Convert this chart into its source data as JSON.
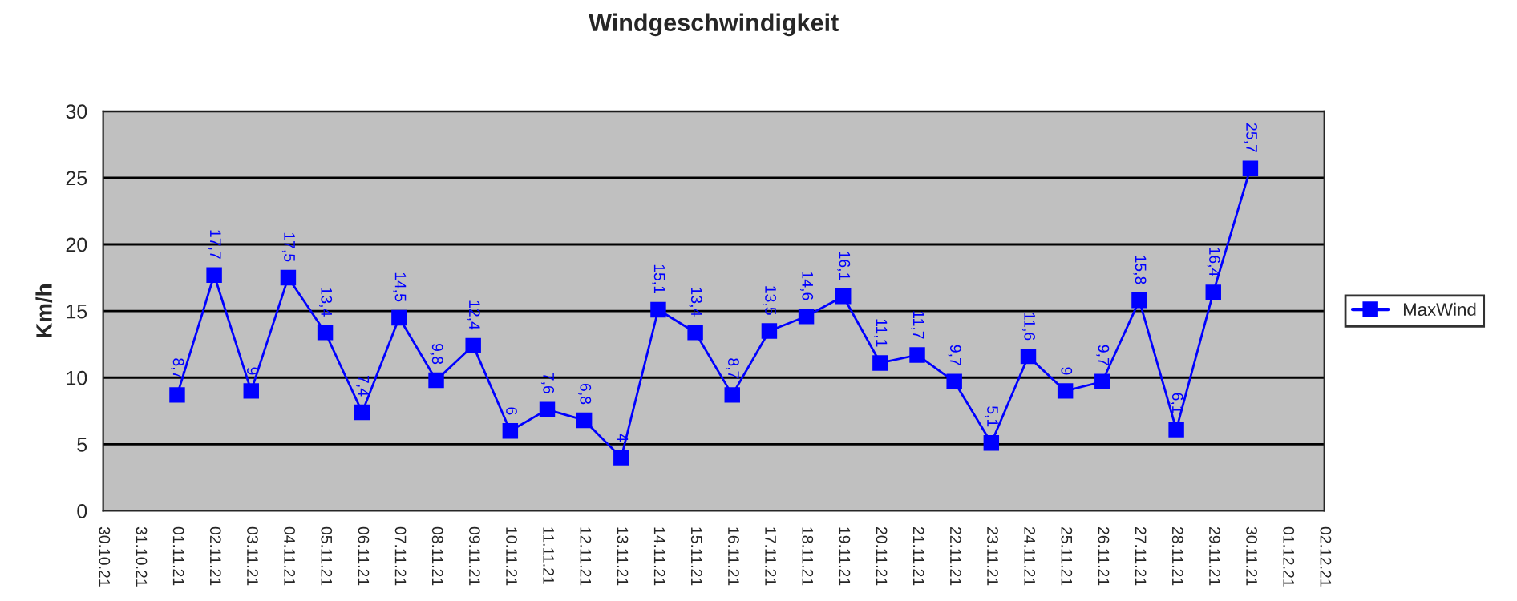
{
  "chart_data": {
    "type": "line",
    "title": "Windgeschwindigkeit",
    "ylabel": "Km/h",
    "categories": [
      "30.10.21",
      "31.10.21",
      "01.11.21",
      "02.11.21",
      "03.11.21",
      "04.11.21",
      "05.11.21",
      "06.11.21",
      "07.11.21",
      "08.11.21",
      "09.11.21",
      "10.11.21",
      "11.11.21",
      "12.11.21",
      "13.11.21",
      "14.11.21",
      "15.11.21",
      "16.11.21",
      "17.11.21",
      "18.11.21",
      "19.11.21",
      "20.11.21",
      "21.11.21",
      "22.11.21",
      "23.11.21",
      "24.11.21",
      "25.11.21",
      "26.11.21",
      "27.11.21",
      "28.11.21",
      "29.11.21",
      "30.11.21",
      "01.12.21",
      "02.12.21"
    ],
    "series": [
      {
        "name": "MaxWind",
        "color": "#0000ff",
        "values": [
          null,
          null,
          8.7,
          17.7,
          9,
          17.5,
          13.4,
          7.4,
          14.5,
          9.8,
          12.4,
          6,
          7.6,
          6.8,
          4,
          15.1,
          13.4,
          8.7,
          13.5,
          14.6,
          16.1,
          11.1,
          11.7,
          9.7,
          5.1,
          11.6,
          9,
          9.7,
          15.8,
          6.1,
          16.4,
          25.7,
          null,
          null
        ],
        "value_labels": [
          null,
          null,
          "8,7",
          "17,7",
          "9",
          "17,5",
          "13,4",
          "7,4",
          "14,5",
          "9,8",
          "12,4",
          "6",
          "7,6",
          "6,8",
          "4",
          "15,1",
          "13,4",
          "8,7",
          "13,5",
          "14,6",
          "16,1",
          "11,1",
          "11,7",
          "9,7",
          "5,1",
          "11,6",
          "9",
          "9,7",
          "15,8",
          "6,1",
          "16,4",
          "25,7",
          null,
          null
        ]
      }
    ],
    "ylim": [
      0,
      30
    ],
    "yticks": [
      0,
      5,
      10,
      15,
      20,
      25,
      30
    ],
    "grid": "y",
    "legend": "right",
    "marker": "square",
    "line_style": "solid"
  }
}
